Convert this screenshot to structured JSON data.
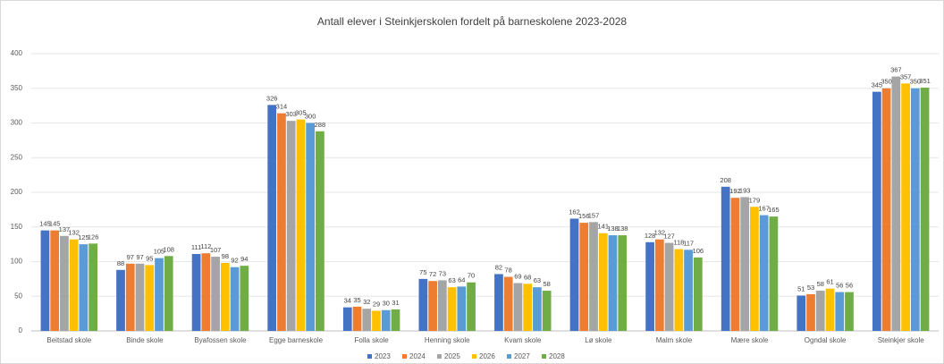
{
  "chart_data": {
    "type": "bar",
    "title": "Antall elever i Steinkjerskolen fordelt på barneskolene 2023-2028",
    "categories": [
      "Beitstad skole",
      "Binde skole",
      "Byafossen skole",
      "Egge barneskole",
      "Folla skole",
      "Henning skole",
      "Kvam skole",
      "Lø skole",
      "Malm skole",
      "Mære skole",
      "Ogndal skole",
      "Steinkjer skole"
    ],
    "series": [
      {
        "name": "2023",
        "color": "#4472c4",
        "values": [
          145,
          88,
          111,
          326,
          34,
          75,
          82,
          162,
          128,
          208,
          51,
          345
        ]
      },
      {
        "name": "2024",
        "color": "#ed7d31",
        "values": [
          145,
          97,
          112,
          314,
          35,
          72,
          78,
          156,
          132,
          192,
          53,
          350
        ]
      },
      {
        "name": "2025",
        "color": "#a5a5a5",
        "values": [
          137,
          97,
          107,
          303,
          32,
          73,
          69,
          157,
          127,
          193,
          58,
          367
        ]
      },
      {
        "name": "2026",
        "color": "#ffc000",
        "values": [
          132,
          95,
          98,
          305,
          29,
          63,
          68,
          141,
          118,
          179,
          61,
          357
        ]
      },
      {
        "name": "2027",
        "color": "#5b9bd5",
        "values": [
          125,
          105,
          92,
          300,
          30,
          64,
          63,
          138,
          117,
          167,
          56,
          350
        ]
      },
      {
        "name": "2028",
        "color": "#70ad47",
        "values": [
          126,
          108,
          94,
          288,
          31,
          70,
          58,
          138,
          106,
          165,
          56,
          351
        ]
      }
    ],
    "ylim": [
      0,
      400
    ],
    "yticks": [
      0,
      50,
      100,
      150,
      200,
      250,
      300,
      350,
      400
    ],
    "grid": true,
    "legend": "bottom"
  }
}
